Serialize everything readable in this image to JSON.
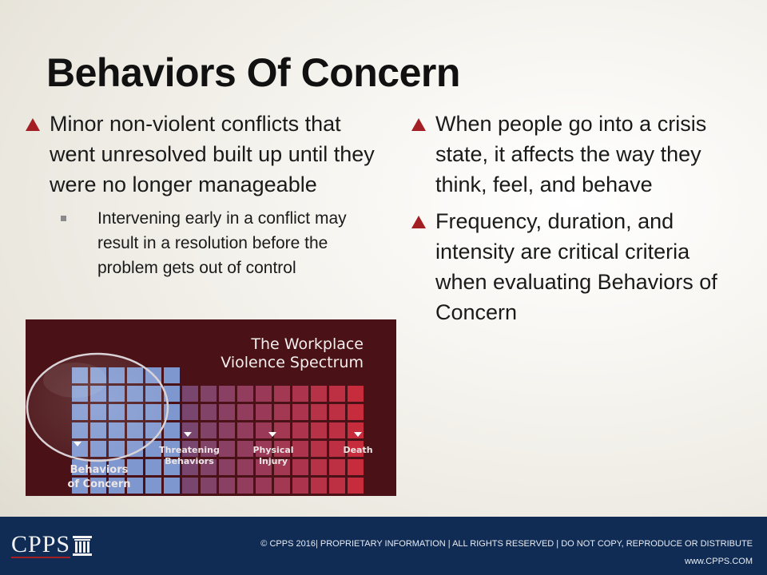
{
  "slide": {
    "title": "Behaviors Of Concern"
  },
  "left_column": {
    "bullet": "Minor non-violent conflicts that went unresolved built up until they were no longer manageable",
    "sub_bullet": "Intervening early in a conflict may result in a resolution before the problem gets out of control"
  },
  "right_column": {
    "bullets": [
      "When people go into a crisis state, it affects the way they think, feel, and behave",
      "Frequency, duration, and intensity are critical criteria when evaluating Behaviors of Concern"
    ]
  },
  "spectrum_graphic": {
    "title_line1": "The Workplace",
    "title_line2": "Violence Spectrum",
    "labels": {
      "behaviors_line1": "Behaviors",
      "behaviors_line2": "of Concern",
      "threatening_line1": "Threatening",
      "threatening_line2": "Behaviors",
      "physical_line1": "Physical",
      "physical_line2": "Injury",
      "death": "Death"
    },
    "colors": {
      "background": "#4a1216",
      "concern_cells": "#7f97cf",
      "danger_cells": "#c62c3c"
    }
  },
  "footer": {
    "logo": "CPPS",
    "copyright": "© CPPS 2016| PROPRIETARY INFORMATION | ALL RIGHTS RESERVED | DO NOT COPY, REPRODUCE OR DISTRIBUTE",
    "website": "www.CPPS.COM"
  },
  "colors": {
    "accent": "#a31f24",
    "footer_bg": "#102c54"
  }
}
